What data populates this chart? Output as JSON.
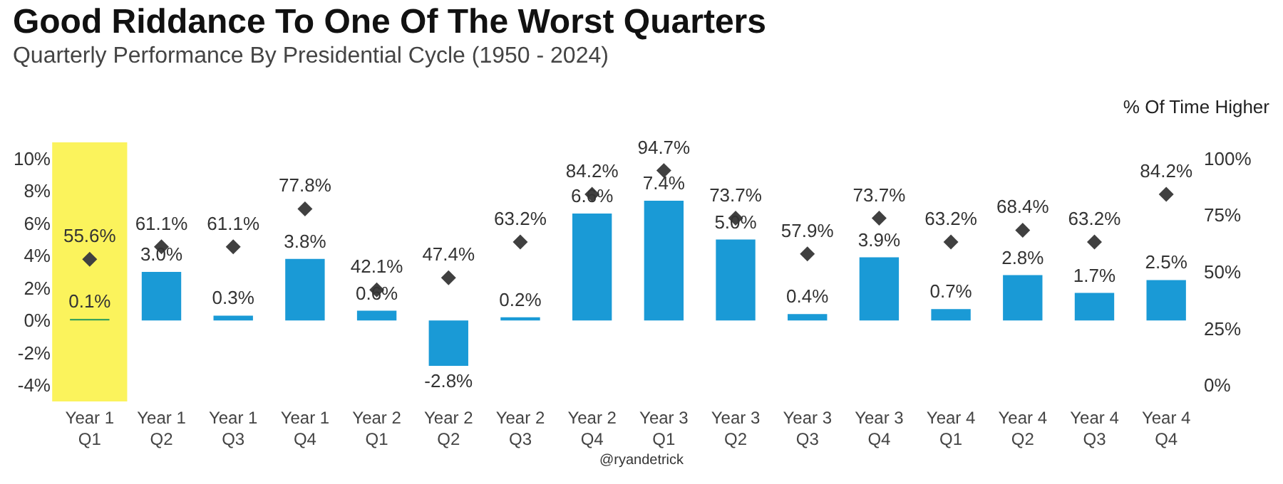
{
  "chart_data": {
    "type": "bar",
    "title": "Good Riddance To One Of The Worst Quarters",
    "subtitle": "Quarterly Performance By Presidential Cycle (1950 - 2024)",
    "y2label": "% Of Time Higher",
    "categories": [
      "Year 1 Q1",
      "Year 1 Q2",
      "Year 1 Q3",
      "Year 1 Q4",
      "Year 2 Q1",
      "Year 2 Q2",
      "Year 2 Q3",
      "Year 2 Q4",
      "Year 3 Q1",
      "Year 3 Q2",
      "Year 3 Q3",
      "Year 3 Q4",
      "Year 4 Q1",
      "Year 4 Q2",
      "Year 4 Q3",
      "Year 4 Q4"
    ],
    "series": [
      {
        "colors": [
          "#3aa35a",
          "#1a9ad6",
          "#1a9ad6",
          "#1a9ad6",
          "#1a9ad6",
          "#1a9ad6",
          "#1a9ad6",
          "#1a9ad6",
          "#1a9ad6",
          "#1a9ad6",
          "#1a9ad6",
          "#1a9ad6",
          "#1a9ad6",
          "#1a9ad6",
          "#1a9ad6",
          "#1a9ad6"
        ],
        "values": [
          0.1,
          3.0,
          0.3,
          3.8,
          0.6,
          -2.8,
          0.2,
          6.6,
          7.4,
          5.0,
          0.4,
          3.9,
          0.7,
          2.8,
          1.7,
          2.5
        ],
        "value_labels": [
          "0.1%",
          "3.0%",
          "0.3%",
          "3.8%",
          "0.6%",
          "-2.8%",
          "0.2%",
          "6.6%",
          "7.4%",
          "5.0%",
          "0.4%",
          "3.9%",
          "0.7%",
          "2.8%",
          "1.7%",
          "2.5%"
        ]
      },
      {
        "type": "scatter",
        "axis": "y2",
        "color": "#404040",
        "values": [
          55.6,
          61.1,
          61.1,
          77.8,
          42.1,
          47.4,
          63.2,
          84.2,
          94.7,
          73.7,
          57.9,
          73.7,
          63.2,
          68.4,
          63.2,
          84.2
        ],
        "value_labels": [
          "55.6%",
          "61.1%",
          "61.1%",
          "77.8%",
          "42.1%",
          "47.4%",
          "63.2%",
          "84.2%",
          "94.7%",
          "73.7%",
          "57.9%",
          "73.7%",
          "63.2%",
          "68.4%",
          "63.2%",
          "84.2%"
        ]
      }
    ],
    "marker": "diamond",
    "ylim": [
      -5,
      11
    ],
    "yticks": [
      {
        "value": -4,
        "label": "-4%"
      },
      {
        "value": -2,
        "label": "-2%"
      },
      {
        "value": 0,
        "label": "0%"
      },
      {
        "value": 2,
        "label": "2%"
      },
      {
        "value": 4,
        "label": "4%"
      },
      {
        "value": 6,
        "label": "6%"
      },
      {
        "value": 8,
        "label": "8%"
      },
      {
        "value": 10,
        "label": "10%"
      }
    ],
    "y2lim": [
      -7.14,
      107.14
    ],
    "y2ticks": [
      {
        "value": 0,
        "label": "0%"
      },
      {
        "value": 25,
        "label": "25%"
      },
      {
        "value": 50,
        "label": "50%"
      },
      {
        "value": 75,
        "label": "75%"
      },
      {
        "value": 100,
        "label": "100%"
      }
    ],
    "bands": [
      {
        "axis": "x",
        "from": "Year 1 Q1",
        "to": "Year 1 Q1",
        "color": "#fbf35c"
      }
    ],
    "annotations": [
      "@ryandetrick"
    ],
    "grid": false
  }
}
